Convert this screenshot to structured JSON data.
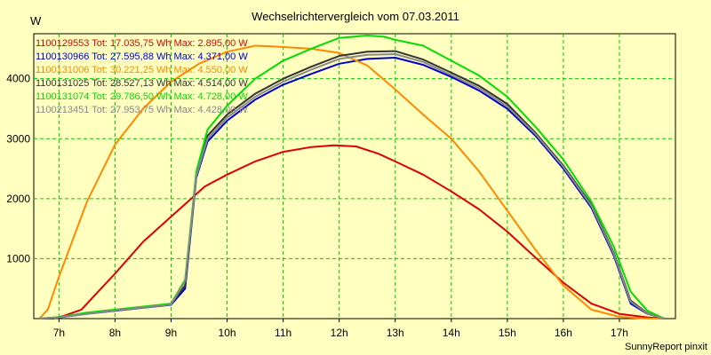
{
  "chart_data": {
    "type": "line",
    "title": "Wechselrichtervergleich vom 07.03.2011",
    "ylabel": "W",
    "footer": "SunnyReport pinxit",
    "ylim": [
      0,
      4750
    ],
    "xlim": [
      6.55,
      18.0
    ],
    "y_ticks": [
      1000,
      2000,
      3000,
      4000
    ],
    "x_ticks": [
      {
        "value": 7,
        "label": "7h"
      },
      {
        "value": 8,
        "label": "8h"
      },
      {
        "value": 9,
        "label": "9h"
      },
      {
        "value": 10,
        "label": "10h"
      },
      {
        "value": 11,
        "label": "11h"
      },
      {
        "value": 12,
        "label": "12h"
      },
      {
        "value": 13,
        "label": "13h"
      },
      {
        "value": 14,
        "label": "14h"
      },
      {
        "value": 15,
        "label": "15h"
      },
      {
        "value": 16,
        "label": "16h"
      },
      {
        "value": 17,
        "label": "17h"
      }
    ],
    "grid": true,
    "series": [
      {
        "name": "1100129553",
        "legend": "1100129553 Tot: 17.035,75 Wh Max: 2.895,00 W",
        "color": "#dd0000",
        "x": [
          6.65,
          6.9,
          7.1,
          7.4,
          7.6,
          8.0,
          8.5,
          9.0,
          9.3,
          9.6,
          10.0,
          10.5,
          11.0,
          11.5,
          11.9,
          12.3,
          12.7,
          13.0,
          13.5,
          14.0,
          14.5,
          15.0,
          15.5,
          16.0,
          16.5,
          17.0,
          17.5,
          17.8
        ],
        "y": [
          0,
          0,
          50,
          150,
          350,
          750,
          1280,
          1700,
          1950,
          2200,
          2400,
          2620,
          2780,
          2860,
          2890,
          2870,
          2750,
          2620,
          2400,
          2120,
          1820,
          1450,
          1020,
          600,
          250,
          80,
          20,
          0
        ]
      },
      {
        "name": "1100130966",
        "legend": "1100130966 Tot: 27.595,88 Wh Max: 4.371,00 W",
        "color": "#0000cc",
        "x": [
          6.65,
          7.0,
          7.5,
          8.0,
          8.5,
          9.0,
          9.25,
          9.45,
          9.65,
          10.0,
          10.5,
          11.0,
          11.5,
          12.0,
          12.5,
          13.0,
          13.5,
          14.0,
          14.5,
          15.0,
          15.5,
          16.0,
          16.5,
          16.9,
          17.2,
          17.5,
          17.8
        ],
        "y": [
          0,
          20,
          80,
          130,
          180,
          230,
          500,
          2350,
          2950,
          3300,
          3650,
          3900,
          4080,
          4250,
          4330,
          4350,
          4230,
          4030,
          3800,
          3500,
          3050,
          2500,
          1850,
          1050,
          250,
          80,
          0
        ]
      },
      {
        "name": "1100131006",
        "legend": "1100131006 Tot: 30.221,25 Wh Max: 4.550,00 W",
        "color": "#ff8800",
        "x": [
          6.65,
          6.8,
          7.0,
          7.5,
          8.0,
          8.5,
          9.0,
          9.5,
          10.0,
          10.5,
          10.8,
          11.5,
          12.0,
          12.5,
          13.0,
          13.5,
          14.0,
          14.5,
          15.0,
          15.5,
          16.0,
          16.5,
          17.0,
          17.5,
          17.8
        ],
        "y": [
          0,
          150,
          700,
          1950,
          2900,
          3500,
          3950,
          4250,
          4450,
          4550,
          4540,
          4500,
          4430,
          4220,
          3820,
          3400,
          3000,
          2450,
          1800,
          1150,
          550,
          150,
          30,
          0,
          0
        ]
      },
      {
        "name": "1100131025",
        "legend": "1100131025 Tot: 28.527,13 Wh Max: 4.514,00 W",
        "color": "#333333",
        "x": [
          6.65,
          7.0,
          7.5,
          8.0,
          8.5,
          9.0,
          9.25,
          9.45,
          9.65,
          10.0,
          10.5,
          11.0,
          11.5,
          12.0,
          12.5,
          13.0,
          13.5,
          14.0,
          14.5,
          15.0,
          15.5,
          16.0,
          16.5,
          16.9,
          17.2,
          17.5,
          17.8
        ],
        "y": [
          0,
          20,
          85,
          140,
          190,
          240,
          550,
          2400,
          3050,
          3400,
          3750,
          4000,
          4200,
          4380,
          4450,
          4460,
          4320,
          4100,
          3880,
          3580,
          3100,
          2550,
          1900,
          1100,
          300,
          90,
          0
        ]
      },
      {
        "name": "1100131074",
        "legend": "1100131074 Tot: 29.786,50 Wh Max: 4.728,00 W",
        "color": "#00dd00",
        "x": [
          6.65,
          7.0,
          7.5,
          8.0,
          8.5,
          9.0,
          9.25,
          9.45,
          9.65,
          10.0,
          10.5,
          11.0,
          11.5,
          12.0,
          12.5,
          12.8,
          13.0,
          13.5,
          14.0,
          14.5,
          15.0,
          15.5,
          16.0,
          16.5,
          16.9,
          17.2,
          17.5,
          17.8
        ],
        "y": [
          0,
          25,
          100,
          150,
          200,
          250,
          650,
          2450,
          3150,
          3550,
          4000,
          4300,
          4500,
          4680,
          4720,
          4700,
          4650,
          4550,
          4300,
          4050,
          3700,
          3200,
          2650,
          1950,
          1200,
          450,
          130,
          0
        ]
      },
      {
        "name": "1100213451",
        "legend": "1100213451 Tot: 27.953,75 Wh Max: 4.428,00 W",
        "color": "#888888",
        "x": [
          6.65,
          7.0,
          7.5,
          8.0,
          8.5,
          9.0,
          9.25,
          9.45,
          9.65,
          10.0,
          10.5,
          11.0,
          11.5,
          12.0,
          12.5,
          13.0,
          13.5,
          14.0,
          14.5,
          15.0,
          15.5,
          16.0,
          16.5,
          16.9,
          17.2,
          17.5,
          17.8
        ],
        "y": [
          0,
          20,
          80,
          135,
          185,
          235,
          620,
          2380,
          3000,
          3350,
          3700,
          3950,
          4150,
          4330,
          4400,
          4410,
          4280,
          4060,
          3840,
          3540,
          3080,
          2530,
          1880,
          1080,
          280,
          85,
          0
        ]
      }
    ]
  }
}
